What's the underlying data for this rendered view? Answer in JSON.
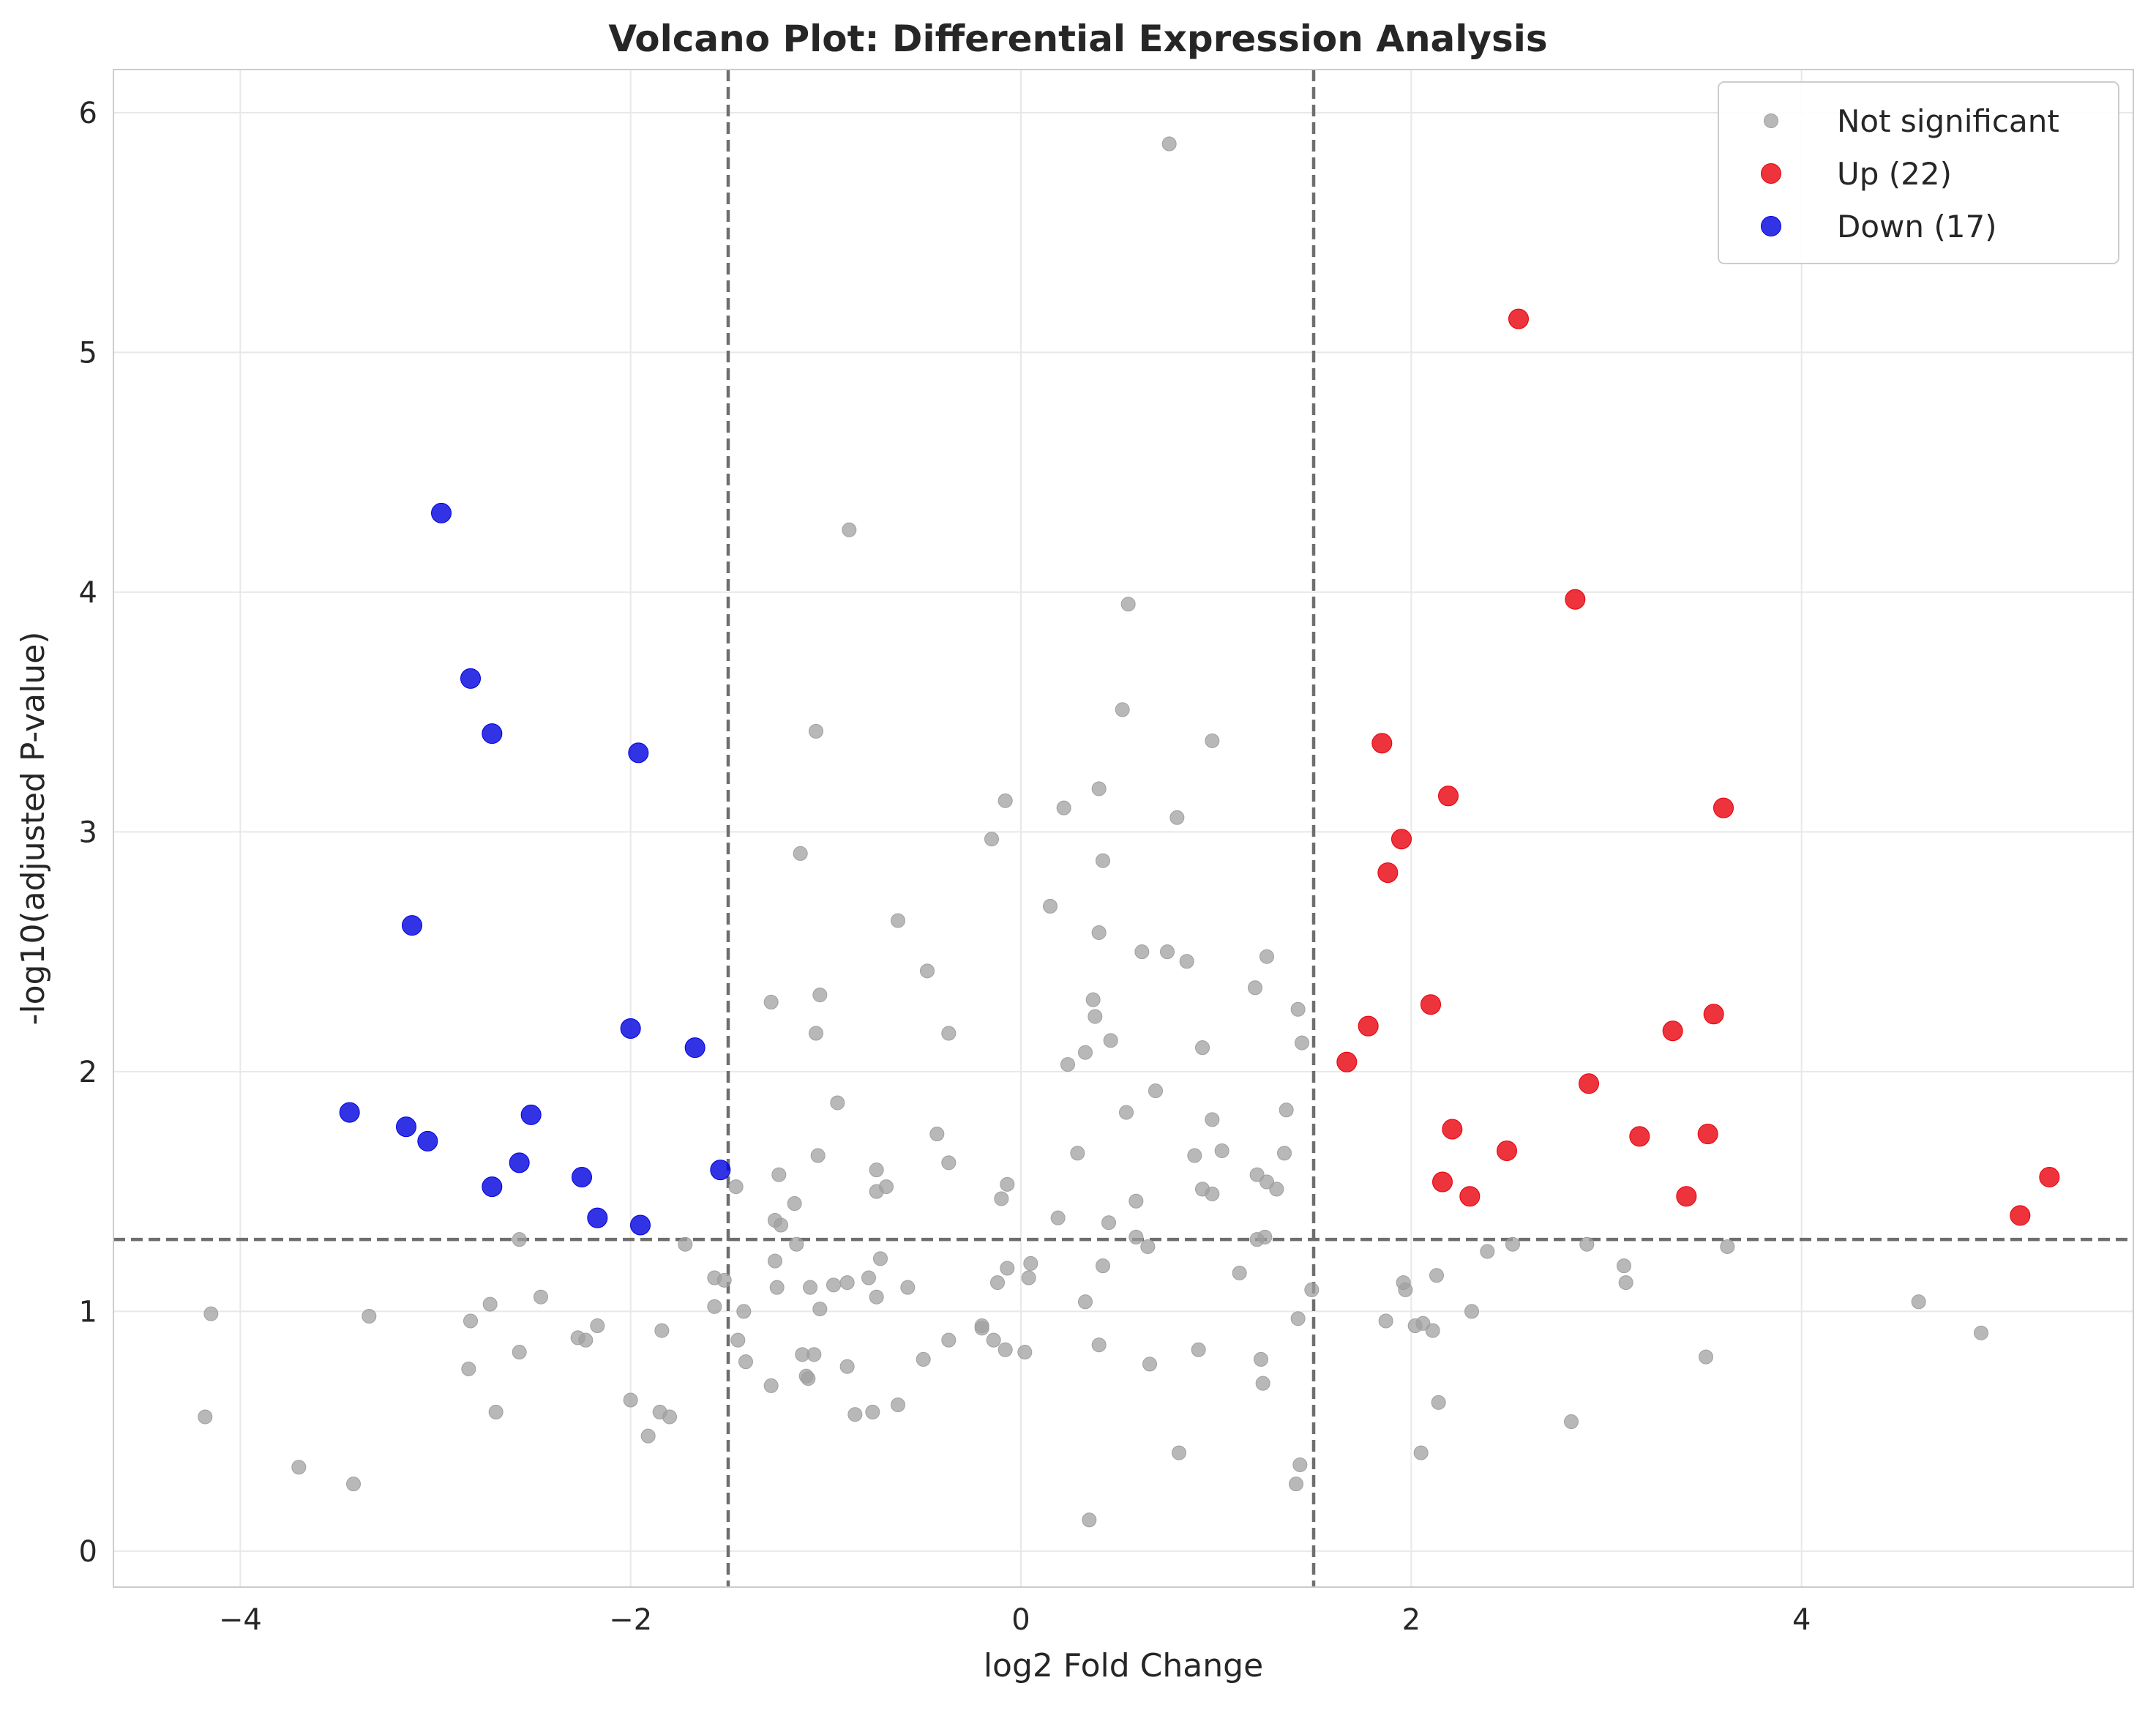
{
  "chart_data": {
    "type": "scatter",
    "title": "Volcano Plot: Differential Expression Analysis",
    "xlabel": "log2 Fold Change",
    "ylabel": "-log10(adjusted P-value)",
    "xlim": [
      -4.65,
      5.7
    ],
    "ylim": [
      -0.15,
      6.18
    ],
    "xticks": [
      -4,
      -2,
      0,
      2,
      4
    ],
    "yticks": [
      0,
      1,
      2,
      3,
      4,
      5,
      6
    ],
    "xtick_labels": [
      "−4",
      "−2",
      "0",
      "2",
      "4"
    ],
    "ytick_labels": [
      "0",
      "1",
      "2",
      "3",
      "4",
      "5",
      "6"
    ],
    "grid": true,
    "legend_position": "top-right",
    "thresholds": {
      "fold_change": [
        -1.5,
        1.5
      ],
      "neg_log10_p": 1.3
    },
    "series": [
      {
        "name": "Not significant",
        "color": "#a0a0a0",
        "points": [
          [
            0.76,
            5.87
          ],
          [
            -0.88,
            4.26
          ],
          [
            0.55,
            3.95
          ],
          [
            0.52,
            3.51
          ],
          [
            -1.05,
            3.42
          ],
          [
            0.98,
            3.38
          ],
          [
            0.4,
            3.18
          ],
          [
            -0.08,
            3.13
          ],
          [
            0.22,
            3.1
          ],
          [
            0.8,
            3.06
          ],
          [
            -0.15,
            2.97
          ],
          [
            -1.13,
            2.91
          ],
          [
            0.42,
            2.88
          ],
          [
            0.15,
            2.69
          ],
          [
            -0.63,
            2.63
          ],
          [
            0.4,
            2.58
          ],
          [
            0.62,
            2.5
          ],
          [
            0.75,
            2.5
          ],
          [
            1.26,
            2.48
          ],
          [
            0.85,
            2.46
          ],
          [
            -0.48,
            2.42
          ],
          [
            1.2,
            2.35
          ],
          [
            -1.03,
            2.32
          ],
          [
            0.37,
            2.3
          ],
          [
            -1.28,
            2.29
          ],
          [
            1.42,
            2.26
          ],
          [
            0.38,
            2.23
          ],
          [
            -0.37,
            2.16
          ],
          [
            -1.05,
            2.16
          ],
          [
            0.46,
            2.13
          ],
          [
            1.44,
            2.12
          ],
          [
            0.93,
            2.1
          ],
          [
            0.33,
            2.08
          ],
          [
            0.24,
            2.03
          ],
          [
            0.69,
            1.92
          ],
          [
            -0.94,
            1.87
          ],
          [
            1.36,
            1.84
          ],
          [
            0.54,
            1.83
          ],
          [
            0.98,
            1.8
          ],
          [
            -0.43,
            1.74
          ],
          [
            1.03,
            1.67
          ],
          [
            1.35,
            1.66
          ],
          [
            0.29,
            1.66
          ],
          [
            0.89,
            1.65
          ],
          [
            -1.04,
            1.65
          ],
          [
            -0.37,
            1.62
          ],
          [
            -0.74,
            1.59
          ],
          [
            1.21,
            1.57
          ],
          [
            -1.24,
            1.57
          ],
          [
            1.26,
            1.54
          ],
          [
            -0.07,
            1.53
          ],
          [
            -1.46,
            1.52
          ],
          [
            -0.69,
            1.52
          ],
          [
            0.93,
            1.51
          ],
          [
            1.31,
            1.51
          ],
          [
            -0.74,
            1.5
          ],
          [
            0.98,
            1.49
          ],
          [
            -0.1,
            1.47
          ],
          [
            0.59,
            1.46
          ],
          [
            -1.16,
            1.45
          ],
          [
            -1.26,
            1.38
          ],
          [
            0.19,
            1.39
          ],
          [
            -1.23,
            1.36
          ],
          [
            0.45,
            1.37
          ],
          [
            0.59,
            1.31
          ],
          [
            1.25,
            1.31
          ],
          [
            1.21,
            1.3
          ],
          [
            -2.57,
            1.3
          ],
          [
            -1.72,
            1.28
          ],
          [
            -1.15,
            1.28
          ],
          [
            0.65,
            1.27
          ],
          [
            2.52,
            1.28
          ],
          [
            2.9,
            1.28
          ],
          [
            3.62,
            1.27
          ],
          [
            2.39,
            1.25
          ],
          [
            -0.72,
            1.22
          ],
          [
            -1.26,
            1.21
          ],
          [
            0.05,
            1.2
          ],
          [
            0.42,
            1.19
          ],
          [
            3.09,
            1.19
          ],
          [
            -0.07,
            1.18
          ],
          [
            1.12,
            1.16
          ],
          [
            2.13,
            1.15
          ],
          [
            -1.57,
            1.14
          ],
          [
            -0.78,
            1.14
          ],
          [
            -1.52,
            1.13
          ],
          [
            0.04,
            1.14
          ],
          [
            -0.89,
            1.12
          ],
          [
            -0.12,
            1.12
          ],
          [
            1.96,
            1.12
          ],
          [
            3.1,
            1.12
          ],
          [
            -0.96,
            1.11
          ],
          [
            -1.08,
            1.1
          ],
          [
            -1.25,
            1.1
          ],
          [
            -0.58,
            1.1
          ],
          [
            1.97,
            1.09
          ],
          [
            1.49,
            1.09
          ],
          [
            -0.74,
            1.06
          ],
          [
            -2.46,
            1.06
          ],
          [
            -2.72,
            1.03
          ],
          [
            0.33,
            1.04
          ],
          [
            4.6,
            1.04
          ],
          [
            -1.57,
            1.02
          ],
          [
            -1.03,
            1.01
          ],
          [
            -1.42,
            1.0
          ],
          [
            2.31,
            1.0
          ],
          [
            -4.15,
            0.99
          ],
          [
            -3.34,
            0.98
          ],
          [
            1.42,
            0.97
          ],
          [
            -2.82,
            0.96
          ],
          [
            1.87,
            0.96
          ],
          [
            2.02,
            0.94
          ],
          [
            2.06,
            0.95
          ],
          [
            -2.17,
            0.94
          ],
          [
            -0.2,
            0.94
          ],
          [
            2.11,
            0.92
          ],
          [
            -1.84,
            0.92
          ],
          [
            -0.2,
            0.93
          ],
          [
            4.92,
            0.91
          ],
          [
            -2.27,
            0.89
          ],
          [
            -2.23,
            0.88
          ],
          [
            -1.45,
            0.88
          ],
          [
            -0.37,
            0.88
          ],
          [
            -0.14,
            0.88
          ],
          [
            0.4,
            0.86
          ],
          [
            -0.08,
            0.84
          ],
          [
            0.02,
            0.83
          ],
          [
            0.91,
            0.84
          ],
          [
            -2.57,
            0.83
          ],
          [
            -1.06,
            0.82
          ],
          [
            -1.12,
            0.82
          ],
          [
            3.51,
            0.81
          ],
          [
            -0.5,
            0.8
          ],
          [
            1.23,
            0.8
          ],
          [
            -1.41,
            0.79
          ],
          [
            0.66,
            0.78
          ],
          [
            -0.89,
            0.77
          ],
          [
            -2.83,
            0.76
          ],
          [
            -1.1,
            0.73
          ],
          [
            -1.09,
            0.72
          ],
          [
            1.24,
            0.7
          ],
          [
            -1.28,
            0.69
          ],
          [
            -2.0,
            0.63
          ],
          [
            2.14,
            0.62
          ],
          [
            -0.63,
            0.61
          ],
          [
            -2.69,
            0.58
          ],
          [
            -0.76,
            0.58
          ],
          [
            -1.85,
            0.58
          ],
          [
            -0.85,
            0.57
          ],
          [
            -1.8,
            0.56
          ],
          [
            -4.18,
            0.56
          ],
          [
            2.82,
            0.54
          ],
          [
            -1.91,
            0.48
          ],
          [
            0.81,
            0.41
          ],
          [
            2.05,
            0.41
          ],
          [
            -3.7,
            0.35
          ],
          [
            1.43,
            0.36
          ],
          [
            1.41,
            0.28
          ],
          [
            -3.42,
            0.28
          ],
          [
            0.35,
            0.13
          ]
        ]
      },
      {
        "name": "Up (22)",
        "color": "#e8000b",
        "points": [
          [
            2.55,
            5.14
          ],
          [
            2.84,
            3.97
          ],
          [
            1.85,
            3.37
          ],
          [
            2.19,
            3.15
          ],
          [
            3.6,
            3.1
          ],
          [
            1.95,
            2.97
          ],
          [
            1.88,
            2.83
          ],
          [
            2.1,
            2.28
          ],
          [
            3.55,
            2.24
          ],
          [
            1.78,
            2.19
          ],
          [
            3.34,
            2.17
          ],
          [
            1.67,
            2.04
          ],
          [
            2.91,
            1.95
          ],
          [
            2.21,
            1.76
          ],
          [
            3.17,
            1.73
          ],
          [
            3.52,
            1.74
          ],
          [
            2.49,
            1.67
          ],
          [
            5.27,
            1.56
          ],
          [
            2.16,
            1.54
          ],
          [
            2.3,
            1.48
          ],
          [
            3.41,
            1.48
          ],
          [
            5.12,
            1.4
          ]
        ]
      },
      {
        "name": "Down (17)",
        "color": "#0000e0",
        "points": [
          [
            -2.97,
            4.33
          ],
          [
            -2.82,
            3.64
          ],
          [
            -2.71,
            3.41
          ],
          [
            -1.96,
            3.33
          ],
          [
            -3.12,
            2.61
          ],
          [
            -2.0,
            2.18
          ],
          [
            -1.67,
            2.1
          ],
          [
            -3.44,
            1.83
          ],
          [
            -2.51,
            1.82
          ],
          [
            -3.15,
            1.77
          ],
          [
            -3.04,
            1.71
          ],
          [
            -2.57,
            1.62
          ],
          [
            -1.54,
            1.59
          ],
          [
            -2.25,
            1.56
          ],
          [
            -2.71,
            1.52
          ],
          [
            -2.17,
            1.39
          ],
          [
            -1.95,
            1.36
          ]
        ]
      }
    ]
  }
}
